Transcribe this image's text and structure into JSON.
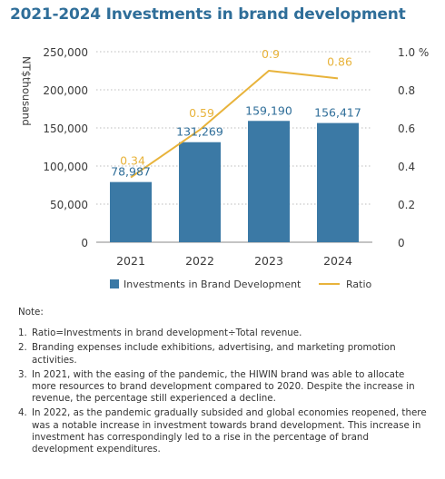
{
  "chart_data": {
    "type": "bar+line",
    "title": "2021-2024 Investments in brand development",
    "ylabel": "NT$thousand",
    "categories": [
      "2021",
      "2022",
      "2023",
      "2024"
    ],
    "y_ticks": [
      "250,000",
      "200,000",
      "150,000",
      "100,000",
      "50,000",
      "0"
    ],
    "y_ticks_right": [
      "1.0 %",
      "0.8",
      "0.6",
      "0.4",
      "0.2",
      "0"
    ],
    "ylim": [
      0,
      250000
    ],
    "ylim_right": [
      0,
      1.0
    ],
    "grid": true,
    "legend_position": "bottom",
    "series": [
      {
        "name": "Investments in Brand Development",
        "type": "bar",
        "axis": "left",
        "values": [
          78987,
          131269,
          159190,
          156417
        ],
        "labels": [
          "78,987",
          "131,269",
          "159,190",
          "156,417"
        ]
      },
      {
        "name": "Ratio",
        "type": "line",
        "axis": "right",
        "values": [
          0.34,
          0.59,
          0.9,
          0.86
        ],
        "labels": [
          "0.34",
          "0.59",
          "0.9",
          "0.86"
        ]
      }
    ],
    "colors": {
      "bar": "#3b79a5",
      "line": "#e8b33b",
      "grid": "#bcbcbc",
      "title": "#2f6e99"
    }
  },
  "notes": {
    "title": "Note:",
    "items": [
      {
        "num": "1.",
        "text": "Ratio=Investments in brand development÷Total revenue."
      },
      {
        "num": "2.",
        "text": "Branding expenses include exhibitions, advertising, and marketing promotion activities."
      },
      {
        "num": "3.",
        "text": "In 2021, with the easing of the pandemic, the HIWIN brand was able to allocate more resources to brand development compared to 2020. Despite the increase in revenue, the percentage still experienced a decline."
      },
      {
        "num": "4.",
        "text": "In 2022, as the pandemic gradually subsided and global economies reopened, there was a notable increase in investment towards brand development. This increase in investment has correspondingly led to a rise in the percentage of brand development expenditures."
      }
    ]
  }
}
